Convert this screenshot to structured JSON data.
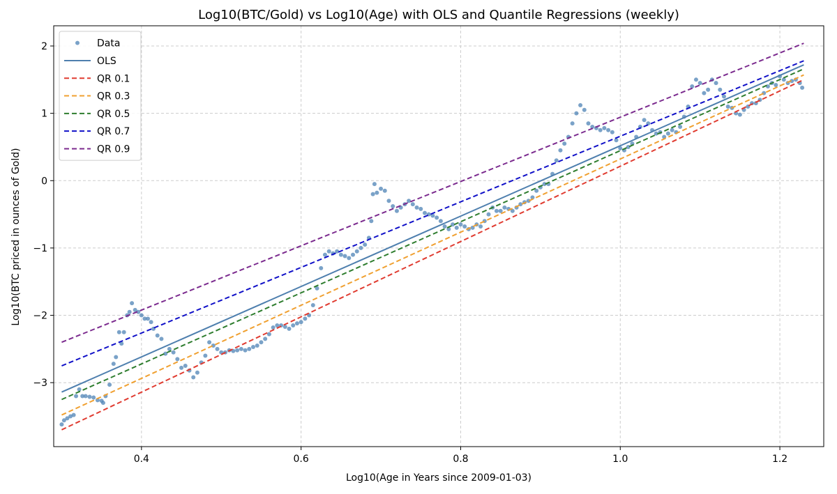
{
  "chart_data": {
    "type": "scatter",
    "title": "Log10(BTC/Gold) vs Log10(Age) with OLS and Quantile Regressions (weekly)",
    "xlabel": "Log10(Age in Years since 2009-01-03)",
    "ylabel": "Log10(BTC priced in ounces of Gold)",
    "xlim": [
      0.29,
      1.255
    ],
    "ylim": [
      -3.95,
      2.3
    ],
    "xticks": [
      0.4,
      0.6,
      0.8,
      1.0,
      1.2
    ],
    "xtick_labels": [
      "0.4",
      "0.6",
      "0.8",
      "1.0",
      "1.2"
    ],
    "yticks": [
      -3,
      -2,
      -1,
      0,
      1,
      2
    ],
    "ytick_labels": [
      "−3",
      "−2",
      "−1",
      "0",
      "1",
      "2"
    ],
    "grid": true,
    "legend_position": "top-left",
    "scatter_series": {
      "name": "Data",
      "color": "#4e83b6",
      "points": [
        [
          0.3,
          -3.62
        ],
        [
          0.303,
          -3.56
        ],
        [
          0.307,
          -3.53
        ],
        [
          0.311,
          -3.5
        ],
        [
          0.315,
          -3.48
        ],
        [
          0.318,
          -3.2
        ],
        [
          0.322,
          -3.1
        ],
        [
          0.326,
          -3.2
        ],
        [
          0.33,
          -3.2
        ],
        [
          0.335,
          -3.21
        ],
        [
          0.34,
          -3.22
        ],
        [
          0.345,
          -3.26
        ],
        [
          0.35,
          -3.27
        ],
        [
          0.352,
          -3.3
        ],
        [
          0.355,
          -3.2
        ],
        [
          0.36,
          -3.03
        ],
        [
          0.365,
          -2.72
        ],
        [
          0.368,
          -2.62
        ],
        [
          0.372,
          -2.25
        ],
        [
          0.375,
          -2.42
        ],
        [
          0.378,
          -2.25
        ],
        [
          0.382,
          -2.0
        ],
        [
          0.385,
          -1.95
        ],
        [
          0.388,
          -1.82
        ],
        [
          0.392,
          -1.92
        ],
        [
          0.396,
          -1.95
        ],
        [
          0.4,
          -2.0
        ],
        [
          0.404,
          -2.05
        ],
        [
          0.408,
          -2.05
        ],
        [
          0.412,
          -2.1
        ],
        [
          0.415,
          -2.2
        ],
        [
          0.42,
          -2.3
        ],
        [
          0.425,
          -2.35
        ],
        [
          0.43,
          -2.57
        ],
        [
          0.435,
          -2.5
        ],
        [
          0.44,
          -2.55
        ],
        [
          0.445,
          -2.65
        ],
        [
          0.45,
          -2.78
        ],
        [
          0.455,
          -2.75
        ],
        [
          0.46,
          -2.82
        ],
        [
          0.465,
          -2.92
        ],
        [
          0.47,
          -2.85
        ],
        [
          0.475,
          -2.7
        ],
        [
          0.48,
          -2.6
        ],
        [
          0.485,
          -2.4
        ],
        [
          0.49,
          -2.45
        ],
        [
          0.495,
          -2.5
        ],
        [
          0.5,
          -2.55
        ],
        [
          0.505,
          -2.55
        ],
        [
          0.51,
          -2.52
        ],
        [
          0.515,
          -2.53
        ],
        [
          0.52,
          -2.52
        ],
        [
          0.525,
          -2.5
        ],
        [
          0.53,
          -2.52
        ],
        [
          0.535,
          -2.5
        ],
        [
          0.54,
          -2.47
        ],
        [
          0.545,
          -2.45
        ],
        [
          0.55,
          -2.4
        ],
        [
          0.555,
          -2.35
        ],
        [
          0.56,
          -2.28
        ],
        [
          0.565,
          -2.18
        ],
        [
          0.57,
          -2.15
        ],
        [
          0.575,
          -2.15
        ],
        [
          0.58,
          -2.17
        ],
        [
          0.585,
          -2.2
        ],
        [
          0.59,
          -2.15
        ],
        [
          0.595,
          -2.12
        ],
        [
          0.6,
          -2.1
        ],
        [
          0.605,
          -2.05
        ],
        [
          0.61,
          -2.0
        ],
        [
          0.615,
          -1.85
        ],
        [
          0.62,
          -1.6
        ],
        [
          0.625,
          -1.3
        ],
        [
          0.63,
          -1.1
        ],
        [
          0.635,
          -1.05
        ],
        [
          0.64,
          -1.08
        ],
        [
          0.645,
          -1.05
        ],
        [
          0.65,
          -1.1
        ],
        [
          0.655,
          -1.12
        ],
        [
          0.66,
          -1.15
        ],
        [
          0.665,
          -1.1
        ],
        [
          0.67,
          -1.05
        ],
        [
          0.675,
          -1.0
        ],
        [
          0.68,
          -0.95
        ],
        [
          0.685,
          -0.85
        ],
        [
          0.688,
          -0.6
        ],
        [
          0.69,
          -0.2
        ],
        [
          0.692,
          -0.05
        ],
        [
          0.695,
          -0.18
        ],
        [
          0.7,
          -0.12
        ],
        [
          0.705,
          -0.15
        ],
        [
          0.71,
          -0.3
        ],
        [
          0.715,
          -0.38
        ],
        [
          0.72,
          -0.45
        ],
        [
          0.725,
          -0.4
        ],
        [
          0.73,
          -0.35
        ],
        [
          0.735,
          -0.3
        ],
        [
          0.74,
          -0.35
        ],
        [
          0.745,
          -0.4
        ],
        [
          0.75,
          -0.42
        ],
        [
          0.755,
          -0.48
        ],
        [
          0.76,
          -0.5
        ],
        [
          0.765,
          -0.52
        ],
        [
          0.77,
          -0.55
        ],
        [
          0.775,
          -0.6
        ],
        [
          0.78,
          -0.68
        ],
        [
          0.785,
          -0.72
        ],
        [
          0.79,
          -0.65
        ],
        [
          0.795,
          -0.7
        ],
        [
          0.8,
          -0.65
        ],
        [
          0.805,
          -0.68
        ],
        [
          0.81,
          -0.72
        ],
        [
          0.815,
          -0.7
        ],
        [
          0.82,
          -0.65
        ],
        [
          0.825,
          -0.68
        ],
        [
          0.83,
          -0.6
        ],
        [
          0.835,
          -0.5
        ],
        [
          0.84,
          -0.4
        ],
        [
          0.845,
          -0.45
        ],
        [
          0.85,
          -0.45
        ],
        [
          0.855,
          -0.4
        ],
        [
          0.86,
          -0.42
        ],
        [
          0.865,
          -0.45
        ],
        [
          0.87,
          -0.4
        ],
        [
          0.875,
          -0.35
        ],
        [
          0.88,
          -0.32
        ],
        [
          0.885,
          -0.3
        ],
        [
          0.89,
          -0.25
        ],
        [
          0.895,
          -0.15
        ],
        [
          0.9,
          -0.1
        ],
        [
          0.905,
          -0.05
        ],
        [
          0.91,
          -0.05
        ],
        [
          0.915,
          0.1
        ],
        [
          0.92,
          0.3
        ],
        [
          0.925,
          0.45
        ],
        [
          0.93,
          0.55
        ],
        [
          0.935,
          0.65
        ],
        [
          0.94,
          0.85
        ],
        [
          0.945,
          1.0
        ],
        [
          0.95,
          1.12
        ],
        [
          0.955,
          1.05
        ],
        [
          0.96,
          0.85
        ],
        [
          0.965,
          0.8
        ],
        [
          0.97,
          0.78
        ],
        [
          0.975,
          0.75
        ],
        [
          0.98,
          0.78
        ],
        [
          0.985,
          0.75
        ],
        [
          0.99,
          0.72
        ],
        [
          0.995,
          0.6
        ],
        [
          1.0,
          0.48
        ],
        [
          1.005,
          0.45
        ],
        [
          1.01,
          0.5
        ],
        [
          1.015,
          0.55
        ],
        [
          1.02,
          0.65
        ],
        [
          1.025,
          0.8
        ],
        [
          1.03,
          0.9
        ],
        [
          1.035,
          0.85
        ],
        [
          1.04,
          0.75
        ],
        [
          1.045,
          0.7
        ],
        [
          1.05,
          0.72
        ],
        [
          1.055,
          0.65
        ],
        [
          1.06,
          0.7
        ],
        [
          1.065,
          0.75
        ],
        [
          1.07,
          0.72
        ],
        [
          1.075,
          0.8
        ],
        [
          1.08,
          0.95
        ],
        [
          1.085,
          1.1
        ],
        [
          1.09,
          1.4
        ],
        [
          1.095,
          1.5
        ],
        [
          1.1,
          1.45
        ],
        [
          1.105,
          1.3
        ],
        [
          1.11,
          1.35
        ],
        [
          1.115,
          1.5
        ],
        [
          1.12,
          1.45
        ],
        [
          1.125,
          1.35
        ],
        [
          1.13,
          1.25
        ],
        [
          1.135,
          1.1
        ],
        [
          1.14,
          1.08
        ],
        [
          1.145,
          1.0
        ],
        [
          1.15,
          0.98
        ],
        [
          1.155,
          1.05
        ],
        [
          1.16,
          1.1
        ],
        [
          1.165,
          1.15
        ],
        [
          1.17,
          1.15
        ],
        [
          1.175,
          1.2
        ],
        [
          1.18,
          1.3
        ],
        [
          1.185,
          1.4
        ],
        [
          1.19,
          1.45
        ],
        [
          1.195,
          1.42
        ],
        [
          1.2,
          1.55
        ],
        [
          1.205,
          1.5
        ],
        [
          1.21,
          1.45
        ],
        [
          1.215,
          1.48
        ],
        [
          1.22,
          1.5
        ],
        [
          1.225,
          1.45
        ],
        [
          1.228,
          1.38
        ]
      ]
    },
    "line_series": [
      {
        "name": "OLS",
        "color": "#4e7fae",
        "style": "solid",
        "x": [
          0.3,
          1.23
        ],
        "y": [
          -3.14,
          1.72
        ]
      },
      {
        "name": "QR 0.1",
        "color": "#e03b30",
        "style": "dashed",
        "x": [
          0.3,
          1.23
        ],
        "y": [
          -3.7,
          1.5
        ]
      },
      {
        "name": "QR 0.3",
        "color": "#f0a030",
        "style": "dashed",
        "x": [
          0.3,
          1.23
        ],
        "y": [
          -3.48,
          1.57
        ]
      },
      {
        "name": "QR 0.5",
        "color": "#2e7d2e",
        "style": "dashed",
        "x": [
          0.3,
          1.23
        ],
        "y": [
          -3.25,
          1.66
        ]
      },
      {
        "name": "QR 0.7",
        "color": "#1010c8",
        "style": "dashed",
        "x": [
          0.3,
          1.23
        ],
        "y": [
          -2.75,
          1.78
        ]
      },
      {
        "name": "QR 0.9",
        "color": "#7b2a8e",
        "style": "dashed",
        "x": [
          0.3,
          1.23
        ],
        "y": [
          -2.4,
          2.04
        ]
      }
    ]
  }
}
